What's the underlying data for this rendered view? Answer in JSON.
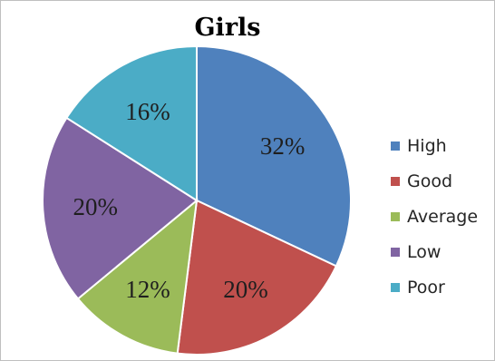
{
  "chart_data": {
    "type": "pie",
    "title": "Girls",
    "slices": [
      {
        "label": "High",
        "value": 32,
        "text": "32%",
        "color": "#4f81bd"
      },
      {
        "label": "Good",
        "value": 20,
        "text": "20%",
        "color": "#c0504d"
      },
      {
        "label": "Average",
        "value": 12,
        "text": "12%",
        "color": "#9bbb59"
      },
      {
        "label": "Low",
        "value": 20,
        "text": "20%",
        "color": "#8064a2"
      },
      {
        "label": "Poor",
        "value": 16,
        "text": "16%",
        "color": "#4bacc6"
      }
    ],
    "start_angle": "12 o'clock, clockwise",
    "legend_position": "right"
  }
}
